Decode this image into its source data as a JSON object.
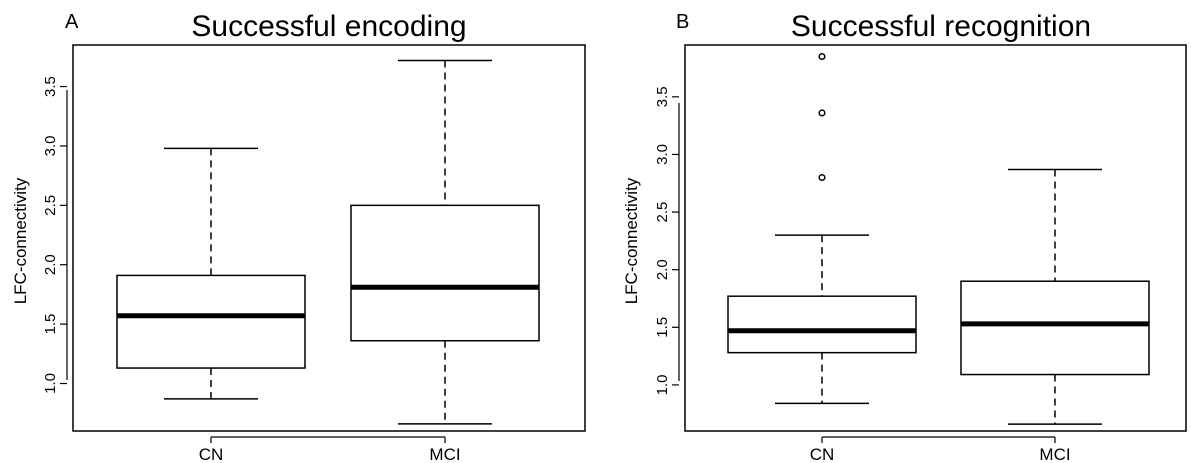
{
  "chart_data": [
    {
      "type": "boxplot",
      "panel_label": "A",
      "title": "Successful encoding",
      "ylabel": "LFC-connectivity",
      "xlabel": "",
      "categories": [
        "CN",
        "MCI"
      ],
      "ylim": [
        0.6,
        3.85
      ],
      "yticks": [
        "1.0",
        "1.5",
        "2.0",
        "2.5",
        "3.0",
        "3.5"
      ],
      "grid": false,
      "boxes": [
        {
          "name": "CN",
          "min": 0.87,
          "q1": 1.13,
          "median": 1.57,
          "q3": 1.91,
          "max": 2.98,
          "outliers": []
        },
        {
          "name": "MCI",
          "min": 0.66,
          "q1": 1.36,
          "median": 1.81,
          "q3": 2.5,
          "max": 3.72,
          "outliers": []
        }
      ]
    },
    {
      "type": "boxplot",
      "panel_label": "B",
      "title": "Successful recognition",
      "ylabel": "LFC-connectivity",
      "xlabel": "",
      "categories": [
        "CN",
        "MCI"
      ],
      "ylim": [
        0.6,
        3.95
      ],
      "yticks": [
        "1.0",
        "1.5",
        "2.0",
        "2.5",
        "3.0",
        "3.5"
      ],
      "grid": false,
      "boxes": [
        {
          "name": "CN",
          "min": 0.84,
          "q1": 1.28,
          "median": 1.47,
          "q3": 1.77,
          "max": 2.3,
          "outliers": [
            2.8,
            3.36,
            3.85
          ]
        },
        {
          "name": "MCI",
          "min": 0.66,
          "q1": 1.09,
          "median": 1.53,
          "q3": 1.9,
          "max": 2.87,
          "outliers": []
        }
      ]
    }
  ]
}
